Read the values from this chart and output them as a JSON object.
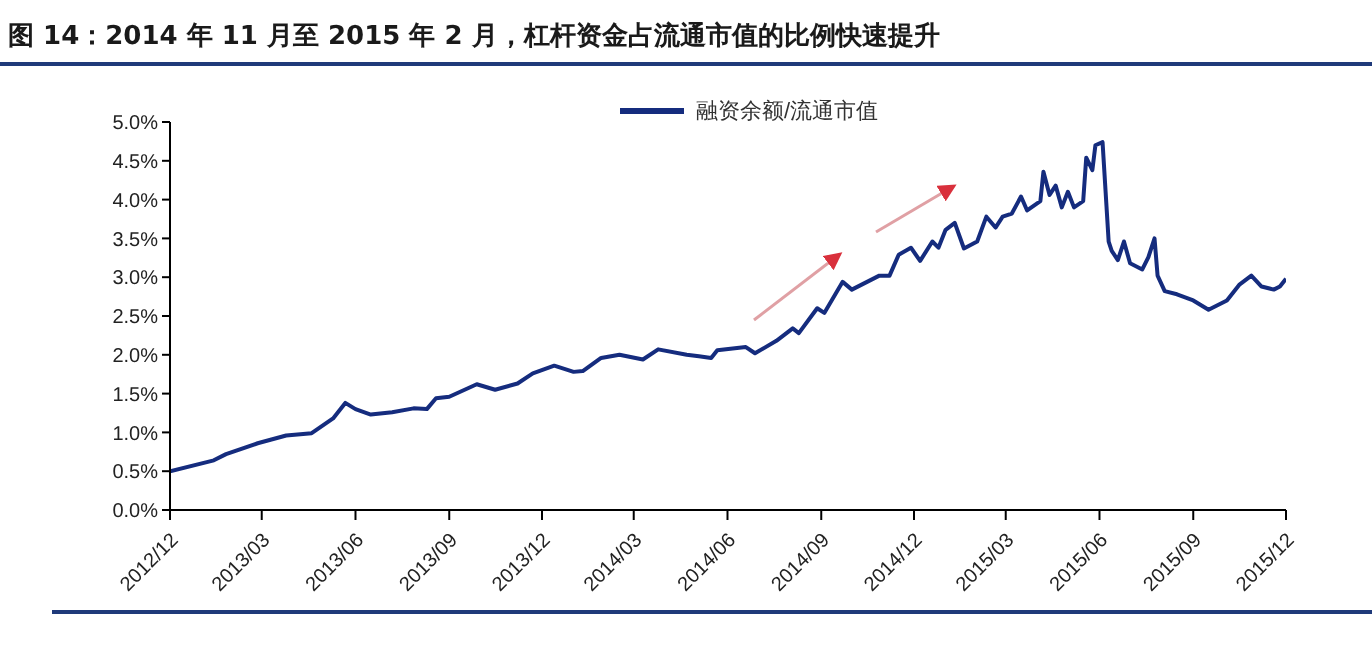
{
  "chart_data": {
    "type": "line",
    "title": "图 14：2014 年 11 月至 2015 年 2 月，杠杆资金占流通市值的比例快速提升",
    "x": [
      "2012-12-01",
      "2013-01-13",
      "2013-01-25",
      "2013-02-25",
      "2013-03-25",
      "2013-04-19",
      "2013-05-10",
      "2013-05-22",
      "2013-06-01",
      "2013-06-16",
      "2013-07-07",
      "2013-07-28",
      "2013-08-10",
      "2013-08-19",
      "2013-09-01",
      "2013-09-28",
      "2013-10-16",
      "2013-11-07",
      "2013-11-22",
      "2013-12-13",
      "2014-01-01",
      "2014-01-10",
      "2014-01-28",
      "2014-02-15",
      "2014-03-10",
      "2014-03-25",
      "2014-04-22",
      "2014-05-04",
      "2014-05-16",
      "2014-05-22",
      "2014-06-19",
      "2014-06-28",
      "2014-07-19",
      "2014-08-04",
      "2014-08-10",
      "2014-08-28",
      "2014-09-04",
      "2014-09-22",
      "2014-10-01",
      "2014-10-28",
      "2014-11-07",
      "2014-11-16",
      "2014-11-28",
      "2014-12-07",
      "2014-12-19",
      "2014-12-25",
      "2015-01-01",
      "2015-01-10",
      "2015-01-19",
      "2015-02-01",
      "2015-02-10",
      "2015-02-19",
      "2015-02-26",
      "2015-03-07",
      "2015-03-16",
      "2015-03-22",
      "2015-04-04",
      "2015-04-07",
      "2015-04-13",
      "2015-04-19",
      "2015-04-25",
      "2015-05-01",
      "2015-05-07",
      "2015-05-16",
      "2015-05-19",
      "2015-05-25",
      "2015-05-28",
      "2015-06-04",
      "2015-06-10",
      "2015-06-13",
      "2015-06-19",
      "2015-06-25",
      "2015-07-01",
      "2015-07-13",
      "2015-07-19",
      "2015-07-25",
      "2015-07-28",
      "2015-08-04",
      "2015-08-16",
      "2015-09-01",
      "2015-09-16",
      "2015-10-04",
      "2015-10-16",
      "2015-10-28",
      "2015-11-07",
      "2015-11-19",
      "2015-11-25",
      "2015-12-01"
    ],
    "series": [
      {
        "name": "融资余额/流通市值",
        "color": "#152c7e",
        "values": [
          0.5,
          0.64,
          0.72,
          0.86,
          0.96,
          0.99,
          1.18,
          1.38,
          1.3,
          1.23,
          1.26,
          1.31,
          1.3,
          1.44,
          1.46,
          1.62,
          1.55,
          1.63,
          1.76,
          1.86,
          1.78,
          1.79,
          1.96,
          2.0,
          1.94,
          2.07,
          2.0,
          1.98,
          1.96,
          2.06,
          2.1,
          2.02,
          2.18,
          2.34,
          2.28,
          2.6,
          2.54,
          2.94,
          2.84,
          3.02,
          3.02,
          3.29,
          3.38,
          3.21,
          3.46,
          3.38,
          3.61,
          3.7,
          3.37,
          3.46,
          3.78,
          3.64,
          3.78,
          3.82,
          4.04,
          3.86,
          3.98,
          4.36,
          4.06,
          4.18,
          3.9,
          4.1,
          3.9,
          3.98,
          4.54,
          4.38,
          4.7,
          4.74,
          3.46,
          3.34,
          3.22,
          3.46,
          3.18,
          3.1,
          3.26,
          3.5,
          3.02,
          2.82,
          2.78,
          2.7,
          2.58,
          2.7,
          2.9,
          3.02,
          2.88,
          2.84,
          2.88,
          2.98
        ]
      }
    ],
    "xlim": [
      "2012-12-01",
      "2015-12-01"
    ],
    "xticks": [
      {
        "value": "2012-12-01",
        "label": "2012/12"
      },
      {
        "value": "2013-03-01",
        "label": "2013/03"
      },
      {
        "value": "2013-06-01",
        "label": "2013/06"
      },
      {
        "value": "2013-09-01",
        "label": "2013/09"
      },
      {
        "value": "2013-12-01",
        "label": "2013/12"
      },
      {
        "value": "2014-03-01",
        "label": "2014/03"
      },
      {
        "value": "2014-06-01",
        "label": "2014/06"
      },
      {
        "value": "2014-09-01",
        "label": "2014/09"
      },
      {
        "value": "2014-12-01",
        "label": "2014/12"
      },
      {
        "value": "2015-03-01",
        "label": "2015/03"
      },
      {
        "value": "2015-06-01",
        "label": "2015/06"
      },
      {
        "value": "2015-09-01",
        "label": "2015/09"
      },
      {
        "value": "2015-12-01",
        "label": "2015/12"
      }
    ],
    "ylim": [
      0,
      5
    ],
    "yticks": [
      {
        "value": 0,
        "label": "0.0%"
      },
      {
        "value": 0.5,
        "label": "0.5%"
      },
      {
        "value": 1,
        "label": "1.0%"
      },
      {
        "value": 1.5,
        "label": "1.5%"
      },
      {
        "value": 2,
        "label": "2.0%"
      },
      {
        "value": 2.5,
        "label": "2.5%"
      },
      {
        "value": 3,
        "label": "3.0%"
      },
      {
        "value": 3.5,
        "label": "3.5%"
      },
      {
        "value": 4,
        "label": "4.0%"
      },
      {
        "value": 4.5,
        "label": "4.5%"
      },
      {
        "value": 5,
        "label": "5.0%"
      }
    ],
    "grid": false,
    "legend": "top",
    "marker": "none",
    "line_style": "solid"
  }
}
